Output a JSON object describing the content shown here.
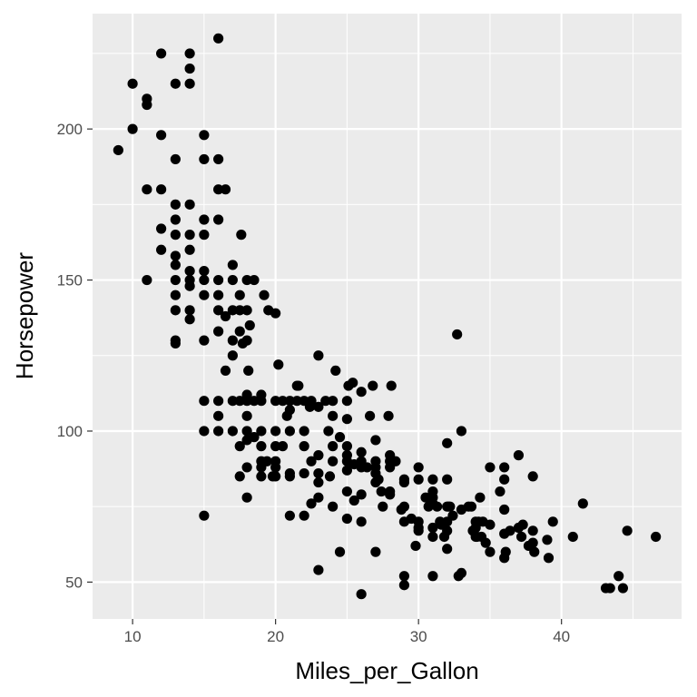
{
  "chart_data": {
    "type": "scatter",
    "title": "",
    "xlabel": "Miles_per_Gallon",
    "ylabel": "Horsepower",
    "xlim": [
      7.2,
      48.4
    ],
    "ylim": [
      37.8,
      238.2
    ],
    "xticks": [
      10,
      20,
      30,
      40
    ],
    "yticks": [
      50,
      100,
      150,
      200
    ],
    "xtick_labels": [
      "10",
      "20",
      "30",
      "40"
    ],
    "ytick_labels": [
      "50",
      "100",
      "150",
      "200"
    ],
    "grid": true,
    "colors": {
      "panel": "#ebebeb",
      "grid": "#ffffff",
      "point": "#000000",
      "tick": "#4d4d4d"
    },
    "points": [
      [
        9,
        193
      ],
      [
        10,
        215
      ],
      [
        10,
        200
      ],
      [
        11,
        210
      ],
      [
        11,
        208
      ],
      [
        11,
        180
      ],
      [
        11,
        150
      ],
      [
        12,
        225
      ],
      [
        12,
        198
      ],
      [
        12,
        180
      ],
      [
        12,
        167
      ],
      [
        12,
        160
      ],
      [
        13,
        215
      ],
      [
        13,
        190
      ],
      [
        13,
        175
      ],
      [
        13,
        170
      ],
      [
        13,
        165
      ],
      [
        13,
        158
      ],
      [
        13,
        155
      ],
      [
        13,
        150
      ],
      [
        13,
        145
      ],
      [
        13,
        140
      ],
      [
        13,
        130
      ],
      [
        13,
        129
      ],
      [
        14,
        225
      ],
      [
        14,
        220
      ],
      [
        14,
        215
      ],
      [
        14,
        175
      ],
      [
        14,
        165
      ],
      [
        14,
        160
      ],
      [
        14,
        153
      ],
      [
        14,
        150
      ],
      [
        14,
        148
      ],
      [
        14,
        140
      ],
      [
        14,
        137
      ],
      [
        15,
        198
      ],
      [
        15,
        190
      ],
      [
        15,
        170
      ],
      [
        15,
        165
      ],
      [
        15,
        153
      ],
      [
        15,
        150
      ],
      [
        15,
        145
      ],
      [
        15,
        130
      ],
      [
        15,
        110
      ],
      [
        15,
        100
      ],
      [
        15,
        72
      ],
      [
        16,
        230
      ],
      [
        16,
        190
      ],
      [
        16,
        180
      ],
      [
        16,
        170
      ],
      [
        16,
        150
      ],
      [
        16,
        145
      ],
      [
        16,
        140
      ],
      [
        16,
        133
      ],
      [
        16,
        110
      ],
      [
        16,
        105
      ],
      [
        16,
        100
      ],
      [
        16.5,
        180
      ],
      [
        16.5,
        138
      ],
      [
        16.5,
        120
      ],
      [
        17,
        155
      ],
      [
        17,
        150
      ],
      [
        17,
        140
      ],
      [
        17,
        130
      ],
      [
        17,
        125
      ],
      [
        17,
        110
      ],
      [
        17,
        100
      ],
      [
        17.5,
        145
      ],
      [
        17.5,
        140
      ],
      [
        17.5,
        133
      ],
      [
        17.5,
        110
      ],
      [
        17.5,
        95
      ],
      [
        17.5,
        85
      ],
      [
        17.6,
        165
      ],
      [
        17.7,
        129
      ],
      [
        18,
        150
      ],
      [
        18,
        140
      ],
      [
        18,
        130
      ],
      [
        18,
        112
      ],
      [
        18,
        110
      ],
      [
        18,
        105
      ],
      [
        18,
        100
      ],
      [
        18,
        97
      ],
      [
        18,
        88
      ],
      [
        18,
        78
      ],
      [
        18.1,
        120
      ],
      [
        18.2,
        135
      ],
      [
        18.5,
        150
      ],
      [
        18.5,
        110
      ],
      [
        18.5,
        98
      ],
      [
        19,
        112
      ],
      [
        19,
        110
      ],
      [
        19,
        100
      ],
      [
        19,
        95
      ],
      [
        19,
        90
      ],
      [
        19,
        88
      ],
      [
        19,
        85
      ],
      [
        19.2,
        145
      ],
      [
        19.4,
        90
      ],
      [
        19.5,
        140
      ],
      [
        19.8,
        85
      ],
      [
        20,
        139
      ],
      [
        20,
        110
      ],
      [
        20,
        100
      ],
      [
        20,
        95
      ],
      [
        20,
        90
      ],
      [
        20,
        88
      ],
      [
        20,
        85
      ],
      [
        20.2,
        122
      ],
      [
        20.5,
        110
      ],
      [
        20.5,
        95
      ],
      [
        20.8,
        105
      ],
      [
        21,
        110
      ],
      [
        21,
        107
      ],
      [
        21,
        100
      ],
      [
        21,
        86
      ],
      [
        21,
        85
      ],
      [
        21,
        72
      ],
      [
        21.5,
        110
      ],
      [
        21.5,
        115
      ],
      [
        21.6,
        115
      ],
      [
        22,
        110
      ],
      [
        22,
        100
      ],
      [
        22,
        95
      ],
      [
        22,
        86
      ],
      [
        22,
        72
      ],
      [
        22.4,
        108
      ],
      [
        22.5,
        110
      ],
      [
        22.5,
        90
      ],
      [
        22.5,
        76
      ],
      [
        23,
        125
      ],
      [
        23,
        108
      ],
      [
        23,
        92
      ],
      [
        23,
        86
      ],
      [
        23,
        83
      ],
      [
        23,
        78
      ],
      [
        23,
        54
      ],
      [
        23.5,
        110
      ],
      [
        23.7,
        100
      ],
      [
        23.8,
        85
      ],
      [
        24,
        110
      ],
      [
        24,
        105
      ],
      [
        24,
        95
      ],
      [
        24,
        90
      ],
      [
        24,
        75
      ],
      [
        24.2,
        120
      ],
      [
        24.5,
        98
      ],
      [
        24.5,
        60
      ],
      [
        25,
        110
      ],
      [
        25,
        104
      ],
      [
        25,
        95
      ],
      [
        25,
        92
      ],
      [
        25,
        90
      ],
      [
        25,
        87
      ],
      [
        25,
        80
      ],
      [
        25,
        71
      ],
      [
        25.1,
        115
      ],
      [
        25.4,
        116
      ],
      [
        25.5,
        89
      ],
      [
        25.5,
        77
      ],
      [
        26,
        113
      ],
      [
        26,
        93
      ],
      [
        26,
        90
      ],
      [
        26,
        88
      ],
      [
        26,
        79
      ],
      [
        26,
        70
      ],
      [
        26,
        46
      ],
      [
        26.4,
        88
      ],
      [
        26.6,
        105
      ],
      [
        26.8,
        115
      ],
      [
        27,
        97
      ],
      [
        27,
        90
      ],
      [
        27,
        88
      ],
      [
        27,
        86
      ],
      [
        27,
        83
      ],
      [
        27,
        60
      ],
      [
        27.2,
        84
      ],
      [
        27.4,
        80
      ],
      [
        27.5,
        75
      ],
      [
        27.9,
        105
      ],
      [
        28,
        92
      ],
      [
        28,
        90
      ],
      [
        28,
        88
      ],
      [
        28,
        80
      ],
      [
        28,
        79
      ],
      [
        28.1,
        115
      ],
      [
        28.4,
        90
      ],
      [
        28.8,
        74
      ],
      [
        29,
        84
      ],
      [
        29,
        83
      ],
      [
        29,
        75
      ],
      [
        29,
        70
      ],
      [
        29,
        52
      ],
      [
        29,
        49
      ],
      [
        29.5,
        71
      ],
      [
        29.8,
        62
      ],
      [
        30,
        88
      ],
      [
        30,
        84
      ],
      [
        30,
        70
      ],
      [
        30,
        68
      ],
      [
        30,
        67
      ],
      [
        30.5,
        78
      ],
      [
        30.7,
        75
      ],
      [
        31,
        78
      ],
      [
        31,
        84
      ],
      [
        31,
        80
      ],
      [
        31,
        76
      ],
      [
        31,
        68
      ],
      [
        31,
        65
      ],
      [
        31,
        52
      ],
      [
        31.3,
        75
      ],
      [
        31.5,
        70
      ],
      [
        31.6,
        69
      ],
      [
        31.8,
        65
      ],
      [
        32,
        84
      ],
      [
        32,
        96
      ],
      [
        32,
        75
      ],
      [
        32,
        70
      ],
      [
        32,
        67
      ],
      [
        32,
        61
      ],
      [
        32.1,
        75
      ],
      [
        32.2,
        75
      ],
      [
        32.4,
        72
      ],
      [
        32.7,
        132
      ],
      [
        32.8,
        52
      ],
      [
        33,
        100
      ],
      [
        33,
        74
      ],
      [
        33,
        53
      ],
      [
        33.5,
        75
      ],
      [
        33.7,
        75
      ],
      [
        33.8,
        67
      ],
      [
        34,
        70
      ],
      [
        34,
        68
      ],
      [
        34,
        65
      ],
      [
        34.1,
        65
      ],
      [
        34.2,
        70
      ],
      [
        34.3,
        78
      ],
      [
        34.4,
        65
      ],
      [
        34.5,
        70
      ],
      [
        34.7,
        63
      ],
      [
        35,
        88
      ],
      [
        35,
        69
      ],
      [
        35,
        60
      ],
      [
        35.7,
        80
      ],
      [
        36,
        88
      ],
      [
        36,
        84
      ],
      [
        36,
        74
      ],
      [
        36,
        66
      ],
      [
        36,
        58
      ],
      [
        36.1,
        60
      ],
      [
        36.4,
        67
      ],
      [
        37,
        92
      ],
      [
        37,
        68
      ],
      [
        37.2,
        65
      ],
      [
        37.3,
        69
      ],
      [
        37.7,
        62
      ],
      [
        38,
        85
      ],
      [
        38,
        67
      ],
      [
        38,
        63
      ],
      [
        38.1,
        60
      ],
      [
        39,
        64
      ],
      [
        39.1,
        58
      ],
      [
        39.4,
        70
      ],
      [
        40.8,
        65
      ],
      [
        41.5,
        76
      ],
      [
        43.1,
        48
      ],
      [
        43.4,
        48
      ],
      [
        44,
        52
      ],
      [
        44.3,
        48
      ],
      [
        44.6,
        67
      ],
      [
        46.6,
        65
      ]
    ]
  }
}
